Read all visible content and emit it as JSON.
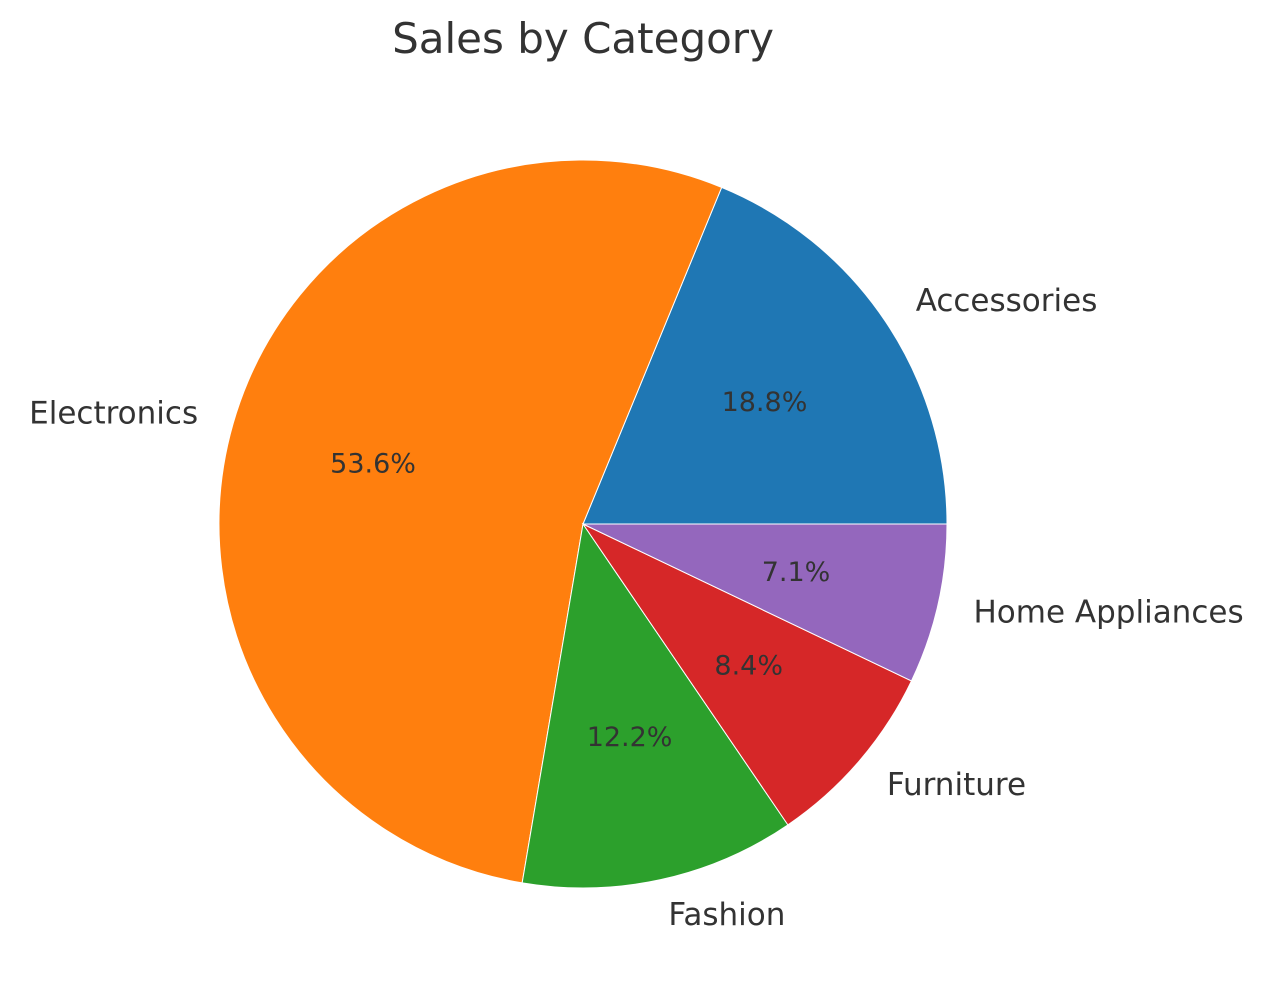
{
  "chart_data": {
    "type": "pie",
    "title": "Sales by Category",
    "start_angle_deg": 0,
    "direction": "counterclockwise",
    "slices": [
      {
        "label": "Accessories",
        "value": 18.8,
        "pct_label": "18.8%",
        "color": "#1f77b4"
      },
      {
        "label": "Electronics",
        "value": 53.6,
        "pct_label": "53.6%",
        "color": "#ff7f0e"
      },
      {
        "label": "Fashion",
        "value": 12.2,
        "pct_label": "12.2%",
        "color": "#2ca02c"
      },
      {
        "label": "Furniture",
        "value": 8.4,
        "pct_label": "8.4%",
        "color": "#d62728"
      },
      {
        "label": "Home Appliances",
        "value": 7.1,
        "pct_label": "7.1%",
        "color": "#9467bd"
      }
    ]
  }
}
